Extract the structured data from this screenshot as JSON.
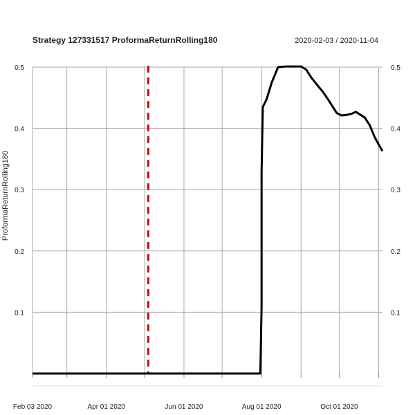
{
  "chart_data": {
    "type": "line",
    "title": "Strategy 127331517 ProformaReturnRolling180",
    "date_range": "2020-02-03 / 2020-11-04",
    "xlabel": "",
    "ylabel": "ProformaReturnRolling180",
    "xlim": [
      "2020-02-03",
      "2020-11-04"
    ],
    "ylim": [
      0,
      0.5
    ],
    "x_ticks": [
      {
        "date": "2020-02-03",
        "label": "Feb 03 2020"
      },
      {
        "date": "2020-04-01",
        "label": "Apr 01 2020"
      },
      {
        "date": "2020-06-01",
        "label": "Jun 01 2020"
      },
      {
        "date": "2020-08-01",
        "label": "Aug 01 2020"
      },
      {
        "date": "2020-10-01",
        "label": "Oct 01 2020"
      }
    ],
    "x_grid_dates": [
      "2020-02-03",
      "2020-03-01",
      "2020-04-01",
      "2020-05-01",
      "2020-06-01",
      "2020-07-01",
      "2020-08-01",
      "2020-09-01",
      "2020-10-01",
      "2020-11-01"
    ],
    "y_ticks": [
      0.1,
      0.2,
      0.3,
      0.4,
      0.5
    ],
    "grid": true,
    "marker_line": {
      "date": "2020-05-04",
      "color": "#dd0000",
      "style": "dashed"
    },
    "series": [
      {
        "color": "#000000",
        "points": [
          [
            "2020-02-03",
            0.0
          ],
          [
            "2020-07-31",
            0.0
          ],
          [
            "2020-08-01",
            0.11
          ],
          [
            "2020-08-01",
            0.33
          ],
          [
            "2020-08-02",
            0.435
          ],
          [
            "2020-08-05",
            0.448
          ],
          [
            "2020-08-09",
            0.475
          ],
          [
            "2020-08-14",
            0.5
          ],
          [
            "2020-08-20",
            0.501
          ],
          [
            "2020-08-27",
            0.501
          ],
          [
            "2020-09-01",
            0.501
          ],
          [
            "2020-09-05",
            0.496
          ],
          [
            "2020-09-09",
            0.483
          ],
          [
            "2020-09-14",
            0.47
          ],
          [
            "2020-09-18",
            0.46
          ],
          [
            "2020-09-22",
            0.448
          ],
          [
            "2020-09-26",
            0.435
          ],
          [
            "2020-09-29",
            0.425
          ],
          [
            "2020-10-03",
            0.421
          ],
          [
            "2020-10-07",
            0.422
          ],
          [
            "2020-10-11",
            0.424
          ],
          [
            "2020-10-14",
            0.427
          ],
          [
            "2020-10-17",
            0.423
          ],
          [
            "2020-10-21",
            0.418
          ],
          [
            "2020-10-25",
            0.405
          ],
          [
            "2020-10-29",
            0.385
          ],
          [
            "2020-11-02",
            0.37
          ],
          [
            "2020-11-04",
            0.363
          ]
        ]
      }
    ]
  }
}
